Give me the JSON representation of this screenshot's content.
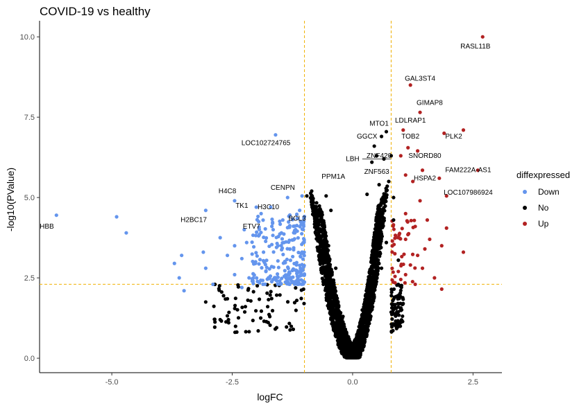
{
  "chart_data": {
    "type": "scatter",
    "title": "COVID-19 vs healthy",
    "xlabel": "logFC",
    "ylabel": "-log10(PValue)",
    "xlim": [
      -6.5,
      3.1
    ],
    "ylim": [
      -0.45,
      10.5
    ],
    "x_ticks": [
      -5.0,
      -2.5,
      0.0,
      2.5
    ],
    "x_tick_labels": [
      "-5.0",
      "-2.5",
      "0.0",
      "2.5"
    ],
    "y_ticks": [
      0.0,
      2.5,
      5.0,
      7.5,
      10.0
    ],
    "y_tick_labels": [
      "0.0",
      "2.5",
      "5.0",
      "7.5",
      "10.0"
    ],
    "grid": false,
    "thresholds": {
      "logFC": [
        -1.0,
        0.8
      ],
      "neg_log10_p": 2.3,
      "color": "#F0B000",
      "style": "dashed"
    },
    "legend": {
      "title": "diffexpressed",
      "placement": "right",
      "entries": [
        {
          "label": "Down",
          "color": "#6495ED"
        },
        {
          "label": "No",
          "color": "#000000"
        },
        {
          "label": "Up",
          "color": "#B22222"
        }
      ]
    },
    "series": [
      {
        "name": "Down",
        "color": "#6495ED",
        "points": [
          [
            -6.15,
            4.45
          ],
          [
            -4.9,
            4.4
          ],
          [
            -4.7,
            3.9
          ],
          [
            -3.7,
            2.95
          ],
          [
            -3.6,
            2.5
          ],
          [
            -3.55,
            3.2
          ],
          [
            -3.5,
            2.1
          ],
          [
            -3.1,
            3.3
          ],
          [
            -3.05,
            4.6
          ],
          [
            -3.05,
            2.8
          ],
          [
            -2.9,
            2.3
          ],
          [
            -2.75,
            3.75
          ],
          [
            -2.6,
            3.2
          ],
          [
            -2.45,
            4.9
          ],
          [
            -2.45,
            3.5
          ],
          [
            -2.45,
            2.6
          ],
          [
            -2.3,
            3.1
          ],
          [
            -2.3,
            2.2
          ],
          [
            -2.25,
            4.0
          ],
          [
            -2.2,
            3.6
          ],
          [
            -2.15,
            2.5
          ],
          [
            -2.0,
            4.7
          ],
          [
            -1.95,
            4.25
          ],
          [
            -1.9,
            4.5
          ],
          [
            -1.85,
            3.3
          ],
          [
            -1.8,
            2.7
          ],
          [
            -1.7,
            4.7
          ],
          [
            -1.65,
            4.0
          ],
          [
            -1.6,
            6.95
          ],
          [
            -1.55,
            3.5
          ],
          [
            -1.45,
            4.3
          ],
          [
            -1.35,
            5.0
          ],
          [
            -1.2,
            3.9
          ],
          [
            -1.15,
            4.35
          ],
          [
            -1.1,
            4.6
          ],
          [
            -1.05,
            3.3
          ],
          [
            -1.05,
            5.05
          ]
        ]
      },
      {
        "name": "No",
        "color": "#000000",
        "points": [
          [
            -3.05,
            1.75
          ],
          [
            -2.75,
            1.2
          ],
          [
            -2.6,
            1.85
          ],
          [
            -0.95,
            5.05
          ],
          [
            -0.85,
            5.2
          ],
          [
            -0.7,
            4.45
          ],
          [
            -0.55,
            5.05
          ],
          [
            -0.45,
            4.6
          ],
          [
            -0.5,
            3.5
          ],
          [
            -0.35,
            2.8
          ],
          [
            0.75,
            5.5
          ],
          [
            0.85,
            5.0
          ],
          [
            0.55,
            5.4
          ],
          [
            0.7,
            3.6
          ],
          [
            0.4,
            6.1
          ],
          [
            0.5,
            6.3
          ],
          [
            0.6,
            6.9
          ],
          [
            0.45,
            6.6
          ],
          [
            0.65,
            6.2
          ],
          [
            0.3,
            5.1
          ],
          [
            0.8,
            6.3
          ],
          [
            0.7,
            7.05
          ],
          [
            0.6,
            2.8
          ],
          [
            0.2,
            1.5
          ],
          [
            -0.2,
            1.3
          ],
          [
            0.0,
            0.05
          ],
          [
            0.85,
            4.3
          ],
          [
            0.95,
            3.05
          ],
          [
            0.98,
            2.0
          ]
        ]
      },
      {
        "name": "Up",
        "color": "#B22222",
        "points": [
          [
            2.7,
            10.0
          ],
          [
            1.2,
            8.5
          ],
          [
            1.4,
            7.65
          ],
          [
            1.05,
            7.1
          ],
          [
            2.3,
            7.1
          ],
          [
            1.9,
            7.0
          ],
          [
            1.15,
            6.55
          ],
          [
            1.35,
            6.45
          ],
          [
            1.0,
            6.3
          ],
          [
            2.6,
            5.85
          ],
          [
            1.45,
            5.85
          ],
          [
            1.1,
            5.7
          ],
          [
            1.8,
            5.6
          ],
          [
            1.25,
            5.5
          ],
          [
            1.95,
            5.05
          ],
          [
            1.4,
            4.9
          ],
          [
            1.1,
            4.5
          ],
          [
            1.3,
            4.1
          ],
          [
            1.55,
            4.3
          ],
          [
            1.95,
            4.05
          ],
          [
            1.6,
            3.7
          ],
          [
            1.85,
            3.5
          ],
          [
            2.3,
            3.3
          ],
          [
            1.35,
            3.2
          ],
          [
            1.2,
            2.9
          ],
          [
            1.1,
            2.6
          ],
          [
            1.45,
            2.8
          ],
          [
            1.7,
            2.5
          ],
          [
            1.0,
            2.45
          ],
          [
            1.3,
            2.3
          ],
          [
            1.85,
            2.15
          ],
          [
            1.1,
            3.7
          ],
          [
            1.5,
            3.4
          ]
        ]
      }
    ],
    "annotations": [
      {
        "text": "RASL11B",
        "x": 2.55,
        "y": 9.7
      },
      {
        "text": "GAL3ST4",
        "x": 1.4,
        "y": 8.7
      },
      {
        "text": "GIMAP8",
        "x": 1.6,
        "y": 7.95
      },
      {
        "text": "MTO1",
        "x": 0.55,
        "y": 7.3
      },
      {
        "text": "LDLRAP1",
        "x": 1.2,
        "y": 7.4
      },
      {
        "text": "PLK2",
        "x": 2.1,
        "y": 6.9
      },
      {
        "text": "GGCX",
        "x": 0.3,
        "y": 6.9
      },
      {
        "text": "TOB2",
        "x": 1.2,
        "y": 6.9
      },
      {
        "text": "LOC102724765",
        "x": -1.8,
        "y": 6.7
      },
      {
        "text": "LBH",
        "x": 0.0,
        "y": 6.2
      },
      {
        "text": "ZNF420",
        "x": 0.55,
        "y": 6.3
      },
      {
        "text": "SNORD80",
        "x": 1.5,
        "y": 6.3
      },
      {
        "text": "ZNF563",
        "x": 0.5,
        "y": 5.8
      },
      {
        "text": "FAM222A-AS1",
        "x": 2.4,
        "y": 5.85
      },
      {
        "text": "PPM1A",
        "x": -0.4,
        "y": 5.65
      },
      {
        "text": "HSPA2",
        "x": 1.5,
        "y": 5.6
      },
      {
        "text": "CENPN",
        "x": -1.45,
        "y": 5.3
      },
      {
        "text": "LOC107986924",
        "x": 2.4,
        "y": 5.15
      },
      {
        "text": "H4C8",
        "x": -2.6,
        "y": 5.2
      },
      {
        "text": "TK1",
        "x": -2.3,
        "y": 4.75
      },
      {
        "text": "H3C10",
        "x": -1.75,
        "y": 4.7
      },
      {
        "text": "BCL3",
        "x": -1.15,
        "y": 4.35
      },
      {
        "text": "H2BC17",
        "x": -3.3,
        "y": 4.3
      },
      {
        "text": "HBB",
        "x": -6.35,
        "y": 4.1
      },
      {
        "text": "ETV7",
        "x": -2.1,
        "y": 4.1
      }
    ]
  }
}
